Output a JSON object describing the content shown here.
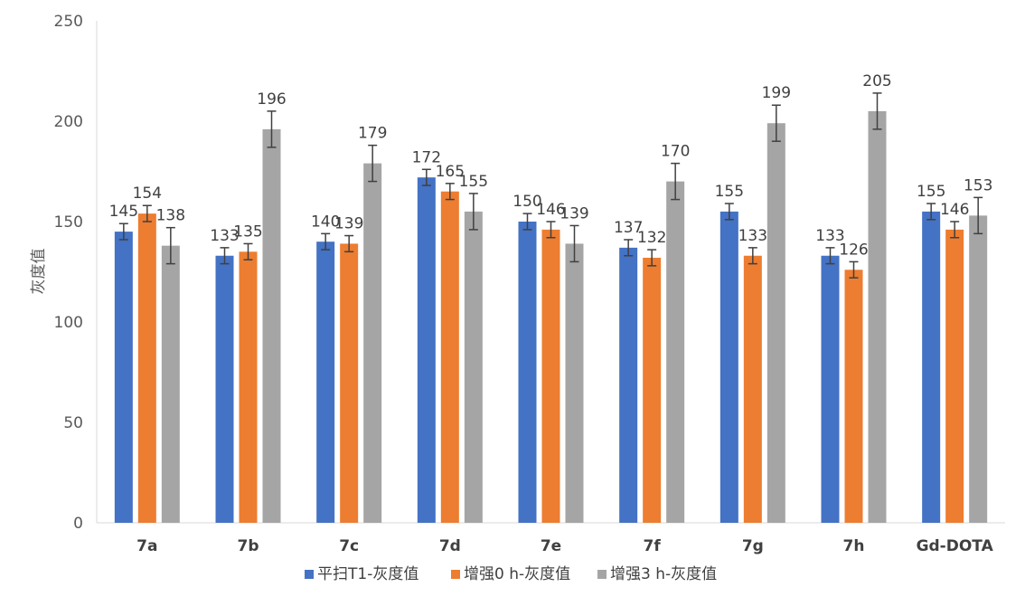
{
  "chart_data": {
    "type": "bar",
    "title": "",
    "xlabel": "",
    "ylabel": "灰度值",
    "ylim": [
      0,
      250
    ],
    "yticks": [
      0,
      50,
      100,
      150,
      200,
      250
    ],
    "categories": [
      "7a",
      "7b",
      "7c",
      "7d",
      "7e",
      "7f",
      "7g",
      "7h",
      "Gd-DOTA"
    ],
    "series": [
      {
        "name": "平扫T1-灰度值",
        "color": "#4472C4",
        "values": [
          145,
          133,
          140,
          172,
          150,
          137,
          155,
          133,
          155
        ],
        "errors": [
          4,
          4,
          4,
          4,
          4,
          4,
          4,
          4,
          4
        ]
      },
      {
        "name": "增强0 h-灰度值",
        "color": "#ED7D31",
        "values": [
          154,
          135,
          139,
          165,
          146,
          132,
          133,
          126,
          146
        ],
        "errors": [
          4,
          4,
          4,
          4,
          4,
          4,
          4,
          4,
          4
        ]
      },
      {
        "name": "增强3 h-灰度值",
        "color": "#A5A5A5",
        "values": [
          138,
          196,
          179,
          155,
          139,
          170,
          199,
          205,
          153
        ],
        "errors": [
          9,
          9,
          9,
          9,
          9,
          9,
          9,
          9,
          9
        ]
      }
    ],
    "grid": false,
    "legend_position": "bottom"
  }
}
